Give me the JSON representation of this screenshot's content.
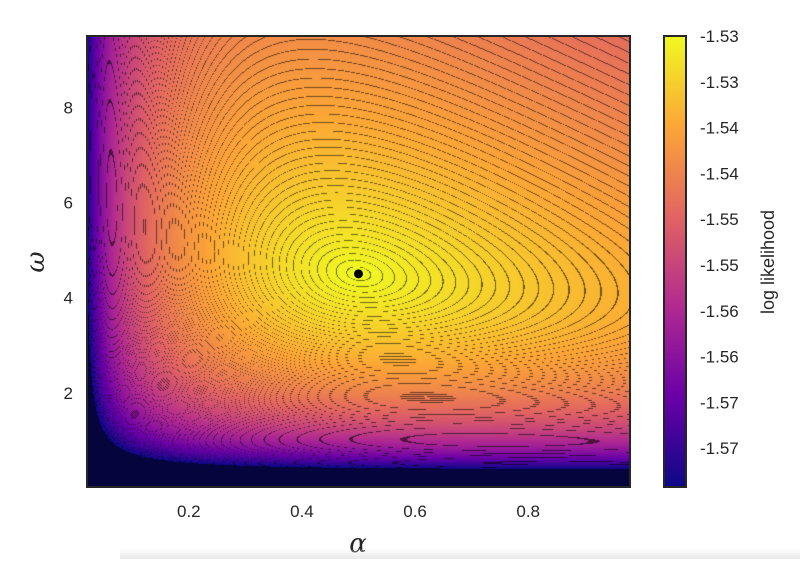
{
  "chart_data": {
    "type": "heatmap",
    "subtype": "filled-contour",
    "title": "",
    "xlabel": "α",
    "ylabel": "ω",
    "xlim": [
      0.02,
      0.98
    ],
    "ylim": [
      0.02,
      9.5
    ],
    "x_ticks": [
      "0.2",
      "0.4",
      "0.6",
      "0.8"
    ],
    "y_ticks": [
      "2",
      "4",
      "6",
      "8"
    ],
    "x_tick_values": [
      0.2,
      0.4,
      0.6,
      0.8
    ],
    "y_tick_values": [
      2,
      4,
      6,
      8
    ],
    "grid": false,
    "colormap": "plasma",
    "colormap_stops": [
      "#0d0887",
      "#6a00a8",
      "#b12a90",
      "#e16462",
      "#fca636",
      "#f0f921"
    ],
    "contour_line_color": "#000000",
    "maximum_point": {
      "alpha": 0.5,
      "omega": 4.5
    },
    "colorbar": {
      "label": "log likelihood",
      "tick_labels": [
        "-1.53",
        "-1.53",
        "-1.54",
        "-1.54",
        "-1.55",
        "-1.55",
        "-1.56",
        "-1.56",
        "-1.57",
        "-1.57"
      ],
      "range_fraction_top": 1.0,
      "range_fraction_bottom": 0.0
    }
  }
}
